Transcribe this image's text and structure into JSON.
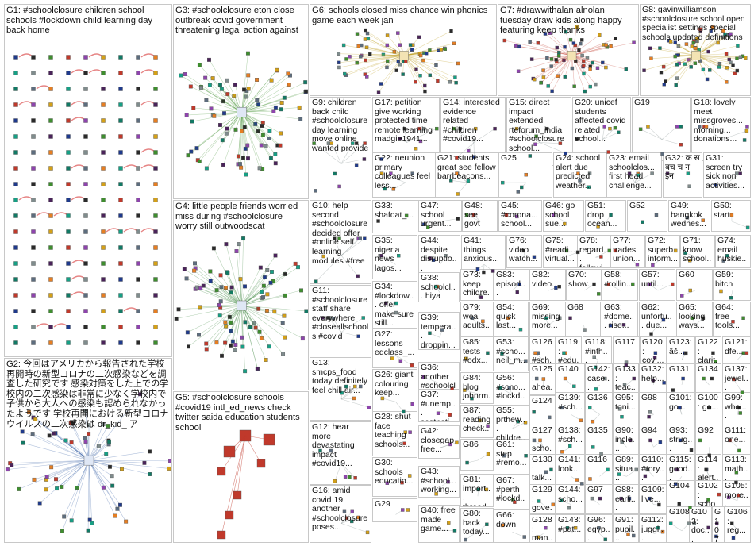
{
  "groups": [
    {
      "id": "g1",
      "label": "G1: #schoolclosure children school schools #lockdown child learning day back home"
    },
    {
      "id": "g2",
      "label": "G2: 今回はアメリカから報告された学校再開時の新型コロナの二次感染などを調査した研究です 感染対策をした上での学校内の二次感染は非常に少なく学校内で子供から大人への感染も認められなかったようです 学校再開における新型コロナウイルスの二次感染は dr_kid_ ア"
    },
    {
      "id": "g3",
      "label": "G3: #schoolclosure eton close outbreak covid government threatening legal action against"
    },
    {
      "id": "g4",
      "label": "G4: little people friends worried miss during #schoolclosure worry still outwoodscat"
    },
    {
      "id": "g5",
      "label": "G5: #schoolclosure schools #covid19 intl_ed_news check twitter saida education students school"
    },
    {
      "id": "g6",
      "label": "G6: schools closed miss chance win phonics game each week jan"
    },
    {
      "id": "g7",
      "label": "G7: #drawwithalan alnolan tuesday draw kids along happy featuring keep thanks"
    },
    {
      "id": "g8",
      "label": "G8: gavinwilliamson #schoolclosure school open specialist settings special schools updated definitions"
    },
    {
      "id": "g9",
      "label": "G9: children back child #schoolclosure day learning move online wanted provide"
    },
    {
      "id": "g10",
      "label": "G10: help second #schoolclosure decided offer #online self learning modules #free"
    },
    {
      "id": "g11",
      "label": "G11: #schoolclosure staff share everywhere #closeallschools #covid"
    },
    {
      "id": "g12",
      "label": "G12: hear more devastating impact #covid19..."
    },
    {
      "id": "g13",
      "label": "G13: smcps_food today definitely feel chill air..."
    },
    {
      "id": "g14",
      "label": "G14: interested evidence related #children #covid19..."
    },
    {
      "id": "g15",
      "label": "G15: direct impact extended rteforum_india #schoolclosure school..."
    },
    {
      "id": "g16",
      "label": "G16: amid covid 19 another #schoolclosure poses..."
    },
    {
      "id": "g17",
      "label": "G17: petition give working protected time remote learning madgie1941..."
    },
    {
      "id": "g18",
      "label": "G18: lovely meet missgroves... morning... donations..."
    },
    {
      "id": "g19",
      "label": "G19"
    },
    {
      "id": "g20",
      "label": "G20: unicef students affected covid related school..."
    },
    {
      "id": "g21",
      "label": "G21: students great see fellow barrbeacons..."
    },
    {
      "id": "g22",
      "label": "G22: neunion primary colleagues feel less..."
    },
    {
      "id": "g23",
      "label": "G23: email schoolclos... first head challenge..."
    },
    {
      "id": "g24",
      "label": "G24: school alert due predicted weather..."
    },
    {
      "id": "g25",
      "label": "G25"
    },
    {
      "id": "g26",
      "label": "G26: giant colouring keep..."
    },
    {
      "id": "g27",
      "label": "G27: lessons edclass_..."
    },
    {
      "id": "g28",
      "label": "G28: shut face teaching schools..."
    },
    {
      "id": "g29",
      "label": "G29"
    },
    {
      "id": "g30",
      "label": "G30: schools educatio..."
    },
    {
      "id": "g31",
      "label": "G31: screen try sick non activities..."
    },
    {
      "id": "g32",
      "label": "G32: क स बच च न इन"
    },
    {
      "id": "g33",
      "label": "G33: shafqat_..."
    },
    {
      "id": "g34",
      "label": "G34: #lockdow... offer make sure still..."
    },
    {
      "id": "g35",
      "label": "G35: nigeria news lagos..."
    },
    {
      "id": "g36",
      "label": "G36: another #schoolcl..."
    },
    {
      "id": "g37",
      "label": "G37: #unemp... scotnati..."
    },
    {
      "id": "g38",
      "label": "G38: schoolcl... hiya last..."
    },
    {
      "id": "g39",
      "label": "G39: tempera... droppin..."
    },
    {
      "id": "g40",
      "label": "G40: free made game..."
    },
    {
      "id": "g41",
      "label": "G41: things anxious..."
    },
    {
      "id": "g42",
      "label": "G42: closegap free..."
    },
    {
      "id": "g43",
      "label": "G43: #school... working..."
    },
    {
      "id": "g44",
      "label": "G44: despite disruptio..."
    },
    {
      "id": "g45",
      "label": "G45: #corona... school..."
    },
    {
      "id": "g46",
      "label": "G46: go school sue..."
    },
    {
      "id": "g47",
      "label": "G47: school urgent..."
    },
    {
      "id": "g48",
      "label": "G48: see govt"
    },
    {
      "id": "g49",
      "label": "G49: bangkok wednes..."
    },
    {
      "id": "g50",
      "label": "G50: start"
    },
    {
      "id": "g51",
      "label": "G51: drop ocean..."
    },
    {
      "id": "g52",
      "label": "G52"
    },
    {
      "id": "g53",
      "label": "G53: #scho... neil_m..."
    },
    {
      "id": "g54",
      "label": "G54: quick last..."
    },
    {
      "id": "g55",
      "label": "G55: prthew... childre..."
    },
    {
      "id": "g56",
      "label": "G56: #scho... #lockd..."
    },
    {
      "id": "g57",
      "label": "G57: until..."
    },
    {
      "id": "g58",
      "label": "G58: #rollin..."
    },
    {
      "id": "g59",
      "label": "G59: bitch"
    },
    {
      "id": "g60",
      "label": "G60"
    },
    {
      "id": "g61",
      "label": "G61: step #remo..."
    },
    {
      "id": "g62",
      "label": "G62: unfortu... due..."
    },
    {
      "id": "g63",
      "label": "G63: #dome... rise..."
    },
    {
      "id": "g64",
      "label": "G64: free tools..."
    },
    {
      "id": "g65",
      "label": "G65: looking ways..."
    },
    {
      "id": "g66",
      "label": "G66: down"
    },
    {
      "id": "g67",
      "label": "G67: #perth #lockd..."
    },
    {
      "id": "g68",
      "label": "G68"
    },
    {
      "id": "g69",
      "label": "G69: missing more..."
    },
    {
      "id": "g70",
      "label": "G70: show..."
    },
    {
      "id": "g71",
      "label": "G71: know school..."
    },
    {
      "id": "g72",
      "label": "G72: superb inform..."
    },
    {
      "id": "g73",
      "label": "G73: keep childre..."
    },
    {
      "id": "g74",
      "label": "G74: email huskie..."
    },
    {
      "id": "g75",
      "label": "G75: #readi... virtual..."
    },
    {
      "id": "g76",
      "label": "G76: video watch..."
    },
    {
      "id": "g77",
      "label": "G77: trades union..."
    },
    {
      "id": "g78",
      "label": "G78: regard... followi..."
    },
    {
      "id": "g79",
      "label": "G79: wea adults..."
    },
    {
      "id": "g80",
      "label": "G80: back today..."
    },
    {
      "id": "g81",
      "label": "G81: import... thread..."
    },
    {
      "id": "g82",
      "label": "G82: video..."
    },
    {
      "id": "g83",
      "label": "G83: episod..."
    },
    {
      "id": "g84",
      "label": "G84: blog johnrm..."
    },
    {
      "id": "g85",
      "label": "G85: tests #odx..."
    },
    {
      "id": "g86",
      "label": "G86"
    },
    {
      "id": "g87",
      "label": "G87: reading check..."
    },
    {
      "id": "g88",
      "label": "G88: earli..."
    },
    {
      "id": "g89",
      "label": "G89: situa..."
    },
    {
      "id": "g90",
      "label": "G90: incle..."
    },
    {
      "id": "g91",
      "label": "G91: pupil..."
    },
    {
      "id": "g92",
      "label": "G92"
    },
    {
      "id": "g93",
      "label": "G93: strug..."
    },
    {
      "id": "g94",
      "label": "G94"
    },
    {
      "id": "g95",
      "label": "G95: toni..."
    },
    {
      "id": "g96",
      "label": "G96: egyp..."
    },
    {
      "id": "g97",
      "label": "G97"
    },
    {
      "id": "g98",
      "label": "G98"
    },
    {
      "id": "g99",
      "label": "G99: whol..."
    },
    {
      "id": "g100",
      "label": "G100: go..."
    },
    {
      "id": "g101",
      "label": "G101: go..."
    },
    {
      "id": "g102",
      "label": "G102: school"
    },
    {
      "id": "g103",
      "label": "G103: doc... sha..."
    },
    {
      "id": "g104",
      "label": "G104"
    },
    {
      "id": "g105",
      "label": "G105: more..."
    },
    {
      "id": "g106",
      "label": "G106: reg..."
    },
    {
      "id": "g107",
      "label": "G107"
    },
    {
      "id": "g108",
      "label": "G108"
    },
    {
      "id": "g109",
      "label": "G109: live..."
    },
    {
      "id": "g110",
      "label": "G110: #tory..."
    },
    {
      "id": "g111",
      "label": "G111: one..."
    },
    {
      "id": "g112",
      "label": "G112: juggl..."
    },
    {
      "id": "g113",
      "label": "G113: math..."
    },
    {
      "id": "g114",
      "label": "G114: alert..."
    },
    {
      "id": "g115",
      "label": "G115: good..."
    },
    {
      "id": "g116",
      "label": "G116"
    },
    {
      "id": "g117",
      "label": "G117"
    },
    {
      "id": "g118",
      "label": "G118: #inth..."
    },
    {
      "id": "g119",
      "label": "G119: #edu..."
    },
    {
      "id": "g120",
      "label": "G120: covi..."
    },
    {
      "id": "g121",
      "label": "G121: dfe..."
    },
    {
      "id": "g122",
      "label": "G122: clarit..."
    },
    {
      "id": "g123",
      "label": "G123: âš..."
    },
    {
      "id": "g124",
      "label": "G124"
    },
    {
      "id": "g125",
      "label": "G125: ahea..."
    },
    {
      "id": "g126",
      "label": "G126: #sch..."
    },
    {
      "id": "g127",
      "label": "G127: scho..."
    },
    {
      "id": "g128",
      "label": "G128: man..."
    },
    {
      "id": "g129",
      "label": "G129: gove..."
    },
    {
      "id": "g130",
      "label": "G130: talk..."
    },
    {
      "id": "g131",
      "label": "G131"
    },
    {
      "id": "g132",
      "label": "G132: help..."
    },
    {
      "id": "g133",
      "label": "G133: teac..."
    },
    {
      "id": "g134",
      "label": "G134"
    },
    {
      "id": "g135",
      "label": "G135"
    },
    {
      "id": "g136",
      "label": "G136"
    },
    {
      "id": "g137",
      "label": "G137: jewel..."
    },
    {
      "id": "g138",
      "label": "G138: #sch..."
    },
    {
      "id": "g139",
      "label": "G139: #sch..."
    },
    {
      "id": "g140",
      "label": "G140"
    },
    {
      "id": "g141",
      "label": "G141: look..."
    },
    {
      "id": "g142",
      "label": "G142: case..."
    },
    {
      "id": "g143",
      "label": "G143: #pat..."
    },
    {
      "id": "g144",
      "label": "G144: scho..."
    }
  ]
}
